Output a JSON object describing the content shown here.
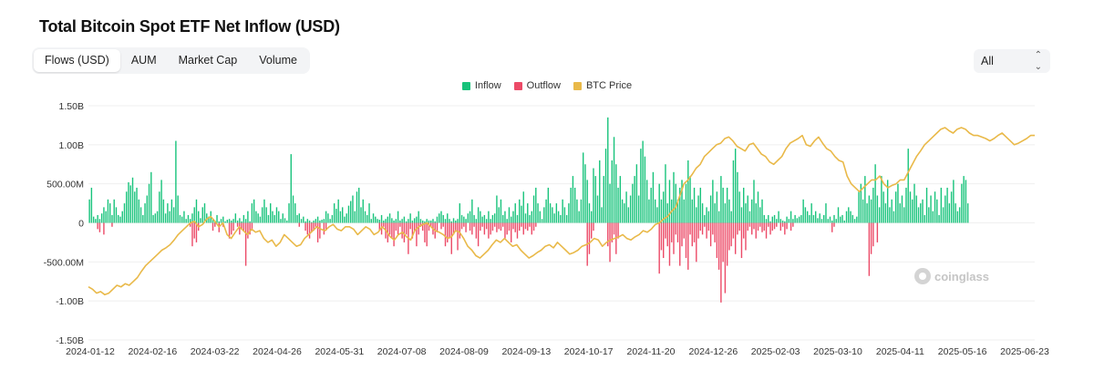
{
  "title": "Total Bitcoin Spot ETF Net Inflow (USD)",
  "tabs": [
    "Flows (USD)",
    "AUM",
    "Market Cap",
    "Volume"
  ],
  "range_select": {
    "value": "All"
  },
  "watermark": "coinglass",
  "colors": {
    "inflow": "#17c37b",
    "outflow": "#ec4a67",
    "btc_price": "#e9b949",
    "grid": "#efefef"
  },
  "chart_data": {
    "type": "bar",
    "title": "Total Bitcoin Spot ETF Net Inflow (USD)",
    "legend": [
      "Inflow",
      "Outflow",
      "BTC Price"
    ],
    "legend_position": "top-center",
    "y_ticks": [
      "1.50B",
      "1.00B",
      "500.00M",
      "0",
      "-500.00M",
      "-1.00B",
      "-1.50B"
    ],
    "ylim": [
      -1.5,
      1.5
    ],
    "y_unit": "B USD",
    "grid": true,
    "x_ticks": [
      "2024-01-12",
      "2024-02-16",
      "2024-03-22",
      "2024-04-26",
      "2024-05-31",
      "2024-07-08",
      "2024-08-09",
      "2024-09-13",
      "2024-10-17",
      "2024-11-20",
      "2024-12-26",
      "2025-02-03",
      "2025-03-10",
      "2025-04-11",
      "2025-05-16",
      "2025-06-23"
    ],
    "series": [
      {
        "name": "Inflow",
        "values": [
          0.3,
          0.45,
          0.08,
          0.05,
          0.1,
          0.05,
          0.12,
          0.2,
          0.15,
          0.3,
          0.25,
          0.1,
          0.3,
          0.2,
          0.1,
          0.08,
          0.15,
          0.25,
          0.4,
          0.52,
          0.48,
          0.58,
          0.4,
          0.45,
          0.3,
          0.2,
          0.1,
          0.25,
          0.35,
          0.5,
          0.65,
          0.1,
          0.12,
          0.15,
          0.4,
          0.55,
          0.3,
          0.12,
          0.25,
          0.15,
          0.3,
          0.2,
          1.05,
          0.35,
          0.1,
          0.08,
          0.15,
          0.05,
          0.1,
          0.05,
          0.12,
          0.2,
          0.3,
          0.15,
          0.06,
          0.2,
          0.25,
          0.12,
          0.08,
          0.15,
          0.05,
          0.03,
          0.1,
          0.02,
          0.05,
          0.08,
          0.02,
          0.04,
          0.05,
          0.03,
          0.05,
          0.12,
          0.03,
          0.06,
          0.02,
          0.1,
          0.05,
          0.15,
          0.02,
          0.25,
          0.3,
          0.15,
          0.12,
          0.08,
          0.2,
          0.3,
          0.2,
          0.1,
          0.25,
          0.15,
          0.1,
          0.2,
          0.15,
          0.05,
          0.12,
          0.06,
          0.03,
          0.25,
          0.88,
          0.35,
          0.25,
          0.1,
          0.12,
          0.05,
          0.08,
          0.02,
          0.05,
          0.03,
          0.01,
          0.03,
          0.05,
          0.08,
          0.03,
          0.04,
          0.05,
          0.15,
          0.12,
          0.05,
          0.1,
          0.25,
          0.18,
          0.3,
          0.15,
          0.2,
          0.08,
          0.12,
          0.22,
          0.28,
          0.35,
          0.15,
          0.4,
          0.45,
          0.2,
          0.3,
          0.15,
          0.1,
          0.25,
          0.05,
          0.12,
          0.08,
          0.05,
          0.04,
          0.1,
          0.03,
          0.05,
          0.08,
          0.12,
          0.06,
          0.03,
          0.05,
          0.15,
          0.03,
          0.05,
          0.08,
          0.02,
          0.05,
          0.12,
          0.03,
          0.06,
          0.08,
          0.15,
          0.05,
          0.03,
          0.02,
          0.05,
          0.03,
          0.03,
          0.05,
          0.02,
          0.08,
          0.12,
          0.15,
          0.1,
          0.05,
          0.12,
          0.05,
          0.02,
          0.06,
          0.03,
          0.05,
          0.25,
          0.1,
          0.08,
          0.05,
          0.12,
          0.15,
          0.3,
          0.1,
          0.05,
          0.2,
          0.15,
          0.08,
          0.1,
          0.05,
          0.15,
          0.05,
          0.1,
          0.12,
          0.35,
          0.2,
          0.3,
          0.1,
          0.15,
          0.05,
          0.2,
          0.08,
          0.15,
          0.25,
          0.1,
          0.3,
          0.22,
          0.4,
          0.12,
          0.25,
          0.1,
          0.15,
          0.35,
          0.45,
          0.25,
          0.15,
          0.05,
          0.2,
          0.3,
          0.45,
          0.25,
          0.2,
          0.12,
          0.25,
          0.15,
          0.1,
          0.3,
          0.2,
          0.1,
          0.25,
          0.45,
          0.6,
          0.45,
          0.3,
          0.15,
          0.3,
          0.9,
          0.75,
          0.55,
          0.25,
          0.15,
          0.7,
          0.6,
          0.35,
          0.8,
          0.2,
          0.6,
          0.95,
          1.35,
          0.5,
          0.8,
          1.1,
          0.75,
          0.45,
          0.6,
          0.3,
          0.25,
          0.4,
          0.2,
          0.35,
          0.5,
          0.6,
          0.75,
          0.35,
          0.95,
          1.05,
          0.85,
          0.55,
          0.3,
          0.45,
          0.65,
          0.3,
          0.2,
          0.5,
          0.3,
          0.4,
          0.75,
          0.25,
          0.55,
          0.3,
          0.65,
          0.5,
          0.3,
          0.45,
          0.55,
          0.3,
          0.5,
          0.8,
          0.6,
          0.3,
          0.45,
          0.2,
          0.35,
          0.45,
          0.25,
          0.1,
          0.2,
          0.15,
          0.35,
          0.55,
          0.25,
          0.4,
          0.15,
          0.6,
          0.45,
          0.25,
          0.45,
          0.3,
          0.15,
          0.8,
          0.95,
          0.65,
          0.4,
          0.2,
          0.45,
          0.25,
          0.35,
          0.15,
          0.3,
          0.55,
          0.25,
          0.4,
          0.2,
          0.3,
          0.1,
          0.05,
          0.1,
          0.02,
          0.08,
          0.1,
          0.05,
          0.15,
          0.05,
          0.03,
          0.02,
          0.08,
          0.05,
          0.15,
          0.05,
          0.1,
          0.06,
          0.08,
          0.1,
          0.3,
          0.2,
          0.15,
          0.1,
          0.25,
          0.1,
          0.15,
          0.06,
          0.12,
          0.05,
          0.1,
          0.25,
          0.05,
          0.08,
          0.03,
          0.1,
          0.05,
          0.2,
          0.08,
          0.1,
          0.03,
          0.15,
          0.2,
          0.15,
          0.1,
          0.05,
          0.08,
          0.4,
          0.5,
          0.3,
          0.6,
          0.25,
          0.35,
          0.3,
          0.45,
          0.75,
          0.35,
          0.2,
          0.6,
          0.4,
          0.25,
          0.55,
          0.2,
          0.3,
          0.15,
          0.4,
          0.5,
          0.25,
          0.35,
          0.2,
          0.45,
          0.95,
          0.4,
          0.3,
          0.5,
          0.35,
          0.2,
          0.25,
          0.3,
          0.1,
          0.45,
          0.2,
          0.35,
          0.15,
          0.4,
          0.3,
          0.1,
          0.45,
          0.2,
          0.35,
          0.45,
          0.25,
          0.4,
          0.55,
          0.25,
          0.15,
          0.2,
          0.5,
          0.6,
          0.55,
          0.25
        ]
      },
      {
        "name": "Outflow",
        "values": [
          0,
          0,
          0,
          0,
          -0.08,
          -0.12,
          0,
          -0.15,
          0,
          0,
          0,
          -0.05,
          0,
          0,
          0,
          0,
          0,
          0,
          0,
          0,
          0,
          0,
          0,
          0,
          0,
          0,
          0,
          0,
          0,
          0,
          0,
          0,
          0,
          0,
          0,
          0,
          0,
          0,
          0,
          0,
          0,
          0,
          0,
          0,
          0,
          0,
          0,
          0,
          0,
          -0.05,
          -0.3,
          -0.2,
          -0.25,
          -0.1,
          0,
          0,
          0,
          0,
          0,
          0,
          -0.1,
          -0.05,
          0,
          -0.12,
          0,
          -0.05,
          0,
          0,
          -0.2,
          -0.15,
          -0.1,
          0,
          -0.05,
          -0.15,
          -0.08,
          -0.1,
          -0.55,
          -0.2,
          -0.15,
          -0.1,
          0,
          0,
          0,
          0,
          0,
          0,
          0,
          0,
          0,
          0,
          0,
          0,
          0,
          0,
          0,
          0,
          0,
          0,
          0,
          0,
          0,
          0,
          -0.05,
          0,
          0,
          -0.1,
          -0.15,
          -0.2,
          -0.12,
          -0.1,
          -0.05,
          -0.25,
          -0.2,
          0,
          -0.15,
          -0.1,
          0,
          0,
          0,
          0,
          0,
          0,
          0,
          0,
          0,
          0,
          0,
          0,
          0,
          0,
          0,
          0,
          0,
          0,
          0,
          0,
          0,
          0,
          0,
          0,
          0,
          -0.1,
          -0.15,
          -0.05,
          -0.2,
          -0.25,
          -0.15,
          -0.2,
          -0.3,
          -0.1,
          -0.15,
          -0.05,
          -0.2,
          -0.25,
          -0.15,
          -0.4,
          -0.08,
          -0.2,
          -0.1,
          -0.3,
          -0.15,
          -0.05,
          -0.1,
          -0.25,
          -0.3,
          -0.1,
          -0.05,
          -0.15,
          -0.2,
          -0.12,
          0,
          -0.08,
          -0.05,
          -0.3,
          -0.25,
          -0.2,
          -0.4,
          -0.15,
          -0.1,
          -0.35,
          -0.2,
          -0.08,
          -0.05,
          -0.12,
          0,
          -0.1,
          -0.15,
          -0.05,
          -0.2,
          -0.3,
          -0.1,
          -0.05,
          -0.15,
          -0.08,
          -0.2,
          -0.15,
          -0.1,
          -0.05,
          -0.12,
          -0.08,
          -0.1,
          -0.05,
          -0.2,
          -0.15,
          -0.1,
          -0.25,
          -0.08,
          -0.12,
          -0.2,
          -0.1,
          -0.05,
          -0.15,
          -0.08,
          -0.1,
          -0.05,
          -0.15,
          -0.1,
          -0.05,
          0,
          0,
          0,
          0,
          0,
          0,
          0,
          0,
          0,
          0,
          0,
          0,
          0,
          0,
          0,
          0,
          0,
          0,
          0,
          0,
          0,
          0,
          0,
          0,
          -0.55,
          -0.4,
          -0.2,
          -0.1,
          0,
          0,
          0,
          0,
          0,
          0,
          -0.3,
          -0.5,
          -0.25,
          -0.15,
          -0.4,
          -0.2,
          0,
          0,
          0,
          0,
          0,
          0,
          0,
          0,
          0,
          0,
          0,
          0,
          0,
          0,
          0,
          0,
          0,
          0,
          0,
          -0.65,
          -0.35,
          -0.45,
          -0.2,
          -0.3,
          -0.55,
          -0.25,
          -0.4,
          -0.15,
          -0.25,
          -0.55,
          -0.3,
          -0.2,
          -0.45,
          -0.6,
          -0.15,
          -0.3,
          -0.25,
          -0.5,
          -0.2,
          -0.1,
          -0.15,
          -0.05,
          -0.2,
          -0.1,
          -0.3,
          -0.15,
          -0.25,
          -0.45,
          -0.6,
          -1.02,
          -0.5,
          -0.9,
          -0.55,
          -0.35,
          -0.3,
          -0.2,
          -0.4,
          -0.15,
          -0.1,
          -0.45,
          -0.2,
          -0.35,
          -0.1,
          -0.05,
          -0.15,
          -0.08,
          -0.2,
          -0.1,
          -0.05,
          -0.12,
          -0.1,
          -0.2,
          -0.05,
          -0.15,
          -0.1,
          -0.08,
          -0.05,
          0,
          -0.1,
          -0.05,
          -0.15,
          -0.08,
          0,
          -0.1,
          -0.05,
          0,
          0,
          0,
          0,
          0,
          0,
          0,
          0,
          0,
          0,
          0,
          0,
          0,
          0,
          0,
          0,
          0,
          0,
          -0.12,
          -0.05,
          0,
          0,
          0,
          0,
          0,
          0,
          0,
          0,
          0,
          0,
          0,
          0,
          0,
          0,
          0,
          0,
          -0.68,
          -0.4,
          -0.3,
          0,
          -0.25,
          0,
          0,
          0,
          0,
          0,
          0,
          0,
          0,
          0,
          0,
          0,
          0,
          0,
          0,
          0,
          0,
          0,
          0,
          0,
          0,
          0,
          0,
          0,
          0,
          0,
          0,
          0,
          0,
          0,
          0,
          0,
          0,
          0,
          0,
          0,
          0,
          0,
          0,
          0,
          0,
          0,
          0,
          0,
          0,
          0,
          0,
          0,
          0,
          0,
          0,
          0,
          0,
          0,
          0,
          0,
          0,
          0,
          0,
          0,
          0,
          0,
          0,
          0,
          0,
          0,
          0,
          0,
          0,
          0,
          0,
          0,
          0,
          0,
          0,
          0,
          0
        ]
      },
      {
        "name": "BTC Price",
        "values": [
          -0.82,
          -0.85,
          -0.9,
          -0.88,
          -0.92,
          -0.9,
          -0.85,
          -0.8,
          -0.82,
          -0.78,
          -0.8,
          -0.75,
          -0.7,
          -0.62,
          -0.55,
          -0.5,
          -0.45,
          -0.4,
          -0.35,
          -0.32,
          -0.28,
          -0.22,
          -0.15,
          -0.1,
          -0.05,
          0.0,
          0.02,
          -0.05,
          -0.02,
          0.05,
          0.08,
          0.02,
          -0.05,
          0.0,
          -0.15,
          -0.2,
          -0.12,
          -0.05,
          -0.1,
          -0.15,
          -0.08,
          -0.12,
          -0.1,
          -0.2,
          -0.25,
          -0.22,
          -0.3,
          -0.25,
          -0.15,
          -0.2,
          -0.25,
          -0.3,
          -0.28,
          -0.2,
          -0.15,
          -0.1,
          -0.05,
          -0.08,
          -0.1,
          -0.05,
          -0.02,
          -0.08,
          -0.1,
          -0.05,
          -0.05,
          -0.08,
          -0.15,
          -0.1,
          -0.05,
          -0.08,
          -0.15,
          -0.12,
          -0.05,
          -0.1,
          -0.18,
          -0.22,
          -0.15,
          -0.12,
          -0.18,
          -0.22,
          -0.1,
          -0.05,
          -0.02,
          0.0,
          -0.05,
          -0.1,
          -0.12,
          -0.15,
          -0.2,
          -0.18,
          -0.1,
          -0.12,
          -0.2,
          -0.3,
          -0.35,
          -0.42,
          -0.45,
          -0.4,
          -0.35,
          -0.28,
          -0.22,
          -0.25,
          -0.2,
          -0.25,
          -0.3,
          -0.28,
          -0.35,
          -0.4,
          -0.45,
          -0.42,
          -0.38,
          -0.35,
          -0.3,
          -0.28,
          -0.32,
          -0.25,
          -0.3,
          -0.35,
          -0.4,
          -0.38,
          -0.35,
          -0.3,
          -0.28,
          -0.25,
          -0.2,
          -0.22,
          -0.3,
          -0.25,
          -0.22,
          -0.2,
          -0.18,
          -0.15,
          -0.2,
          -0.22,
          -0.18,
          -0.15,
          -0.1,
          -0.12,
          -0.08,
          -0.02,
          0.0,
          0.05,
          0.08,
          0.15,
          0.2,
          0.35,
          0.5,
          0.55,
          0.62,
          0.7,
          0.75,
          0.85,
          0.9,
          0.95,
          1.0,
          1.02,
          1.08,
          1.1,
          1.05,
          0.98,
          0.95,
          0.92,
          1.0,
          1.02,
          0.95,
          0.88,
          0.85,
          0.78,
          0.75,
          0.8,
          0.85,
          0.95,
          1.02,
          1.05,
          1.08,
          1.12,
          1.0,
          0.98,
          1.05,
          1.1,
          1.02,
          0.95,
          0.92,
          0.85,
          0.8,
          0.78,
          0.6,
          0.5,
          0.45,
          0.4,
          0.45,
          0.5,
          0.55,
          0.55,
          0.6,
          0.5,
          0.45,
          0.48,
          0.5,
          0.55,
          0.55,
          0.65,
          0.75,
          0.85,
          0.92,
          1.0,
          1.05,
          1.1,
          1.15,
          1.2,
          1.22,
          1.18,
          1.15,
          1.2,
          1.22,
          1.2,
          1.15,
          1.12,
          1.12,
          1.1,
          1.08,
          1.05,
          1.08,
          1.12,
          1.15,
          1.1,
          1.05,
          1.0,
          1.02,
          1.05,
          1.08,
          1.12,
          1.12
        ]
      }
    ]
  }
}
